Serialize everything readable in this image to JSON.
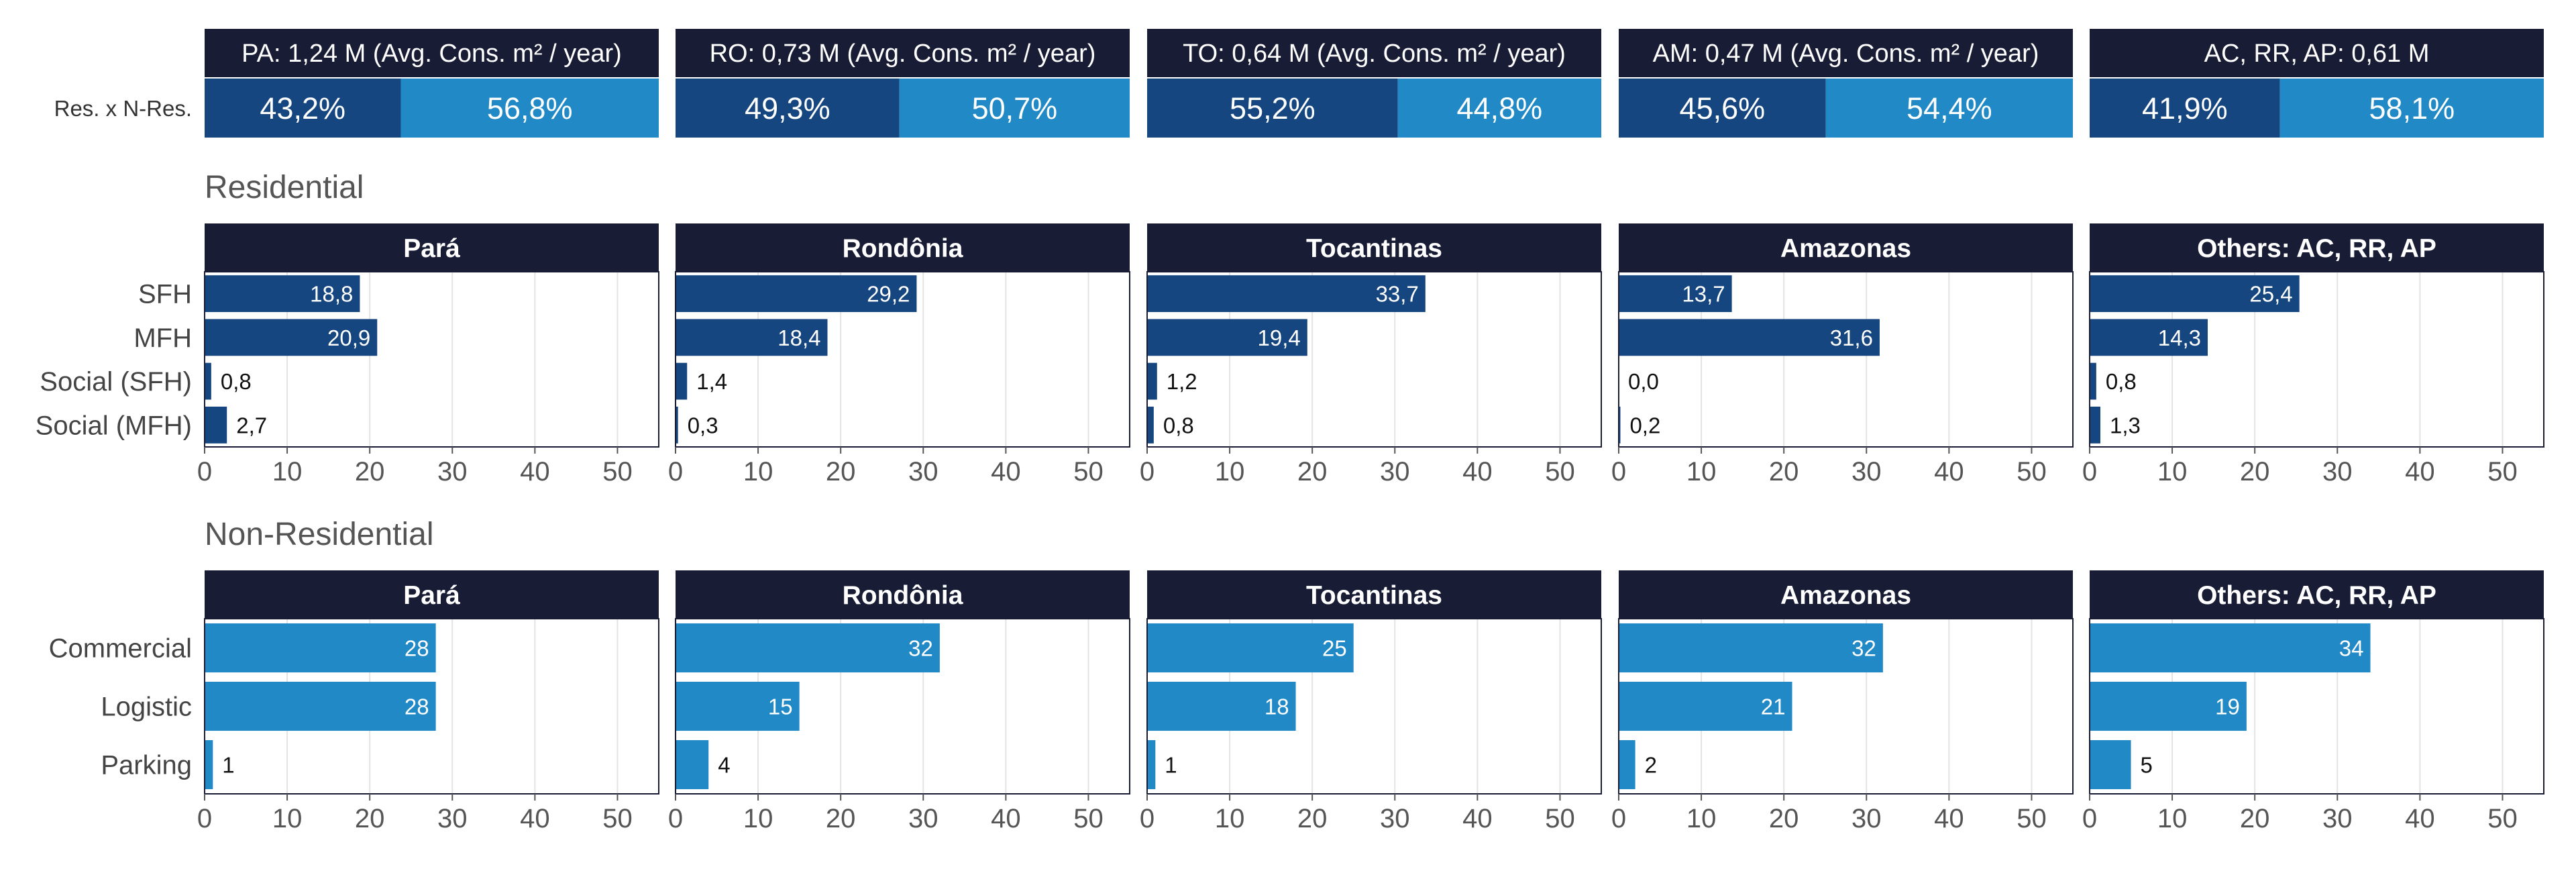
{
  "colors": {
    "header_bg": "#181c35",
    "residential": "#16467f",
    "non_residential": "#2189c6",
    "res_share": "#16467f",
    "nres_share": "#2189c6",
    "border": "#181c35",
    "grid": "#e3e3e3"
  },
  "share_row_label": "Res. x N-Res.",
  "section_labels": {
    "residential": "Residential",
    "non_residential": "Non-Residential"
  },
  "chart_data": [
    {
      "type": "bar",
      "orientation": "stacked-horizontal",
      "name": "share",
      "panels": [
        {
          "header": "PA: 1,24 M (Avg. Cons. m² / year)",
          "res": 43.2,
          "nres": 56.8,
          "res_label": "43,2%",
          "nres_label": "56,8%"
        },
        {
          "header": "RO: 0,73 M (Avg. Cons. m² / year)",
          "res": 49.3,
          "nres": 50.7,
          "res_label": "49,3%",
          "nres_label": "50,7%"
        },
        {
          "header": "TO: 0,64 M (Avg. Cons. m² / year)",
          "res": 55.2,
          "nres": 44.8,
          "res_label": "55,2%",
          "nres_label": "44,8%"
        },
        {
          "header": "AM: 0,47 M (Avg. Cons. m² / year)",
          "res": 45.6,
          "nres": 54.4,
          "res_label": "45,6%",
          "nres_label": "54,4%"
        },
        {
          "header": "AC, RR, AP: 0,61 M",
          "res": 41.9,
          "nres": 58.1,
          "res_label": "41,9%",
          "nres_label": "58,1%"
        }
      ]
    },
    {
      "type": "bar",
      "orientation": "horizontal",
      "name": "residential",
      "categories": [
        "SFH",
        "MFH",
        "Social (SFH)",
        "Social (MFH)"
      ],
      "xlim": [
        0,
        55
      ],
      "xticks": [
        0,
        10,
        20,
        30,
        40,
        50
      ],
      "panels": [
        {
          "header": "Pará",
          "values": [
            18.8,
            20.9,
            0.8,
            2.7
          ],
          "labels": [
            "18,8",
            "20,9",
            "0,8",
            "2,7"
          ]
        },
        {
          "header": "Rondônia",
          "values": [
            29.2,
            18.4,
            1.4,
            0.3
          ],
          "labels": [
            "29,2",
            "18,4",
            "1,4",
            "0,3"
          ]
        },
        {
          "header": "Tocantinas",
          "values": [
            33.7,
            19.4,
            1.2,
            0.8
          ],
          "labels": [
            "33,7",
            "19,4",
            "1,2",
            "0,8"
          ]
        },
        {
          "header": "Amazonas",
          "values": [
            13.7,
            31.6,
            0.0,
            0.2
          ],
          "labels": [
            "13,7",
            "31,6",
            "0,0",
            "0,2"
          ]
        },
        {
          "header": "Others: AC, RR, AP",
          "values": [
            25.4,
            14.3,
            0.8,
            1.3
          ],
          "labels": [
            "25,4",
            "14,3",
            "0,8",
            "1,3"
          ]
        }
      ]
    },
    {
      "type": "bar",
      "orientation": "horizontal",
      "name": "non_residential",
      "categories": [
        "Commercial",
        "Logistic",
        "Parking"
      ],
      "xlim": [
        0,
        55
      ],
      "xticks": [
        0,
        10,
        20,
        30,
        40,
        50
      ],
      "panels": [
        {
          "header": "Pará",
          "values": [
            28,
            28,
            1
          ],
          "labels": [
            "28",
            "28",
            "1"
          ]
        },
        {
          "header": "Rondônia",
          "values": [
            32,
            15,
            4
          ],
          "labels": [
            "32",
            "15",
            "4"
          ]
        },
        {
          "header": "Tocantinas",
          "values": [
            25,
            18,
            1
          ],
          "labels": [
            "25",
            "18",
            "1"
          ]
        },
        {
          "header": "Amazonas",
          "values": [
            32,
            21,
            2
          ],
          "labels": [
            "32",
            "21",
            "2"
          ]
        },
        {
          "header": "Others: AC, RR, AP",
          "values": [
            34,
            19,
            5
          ],
          "labels": [
            "34",
            "19",
            "5"
          ]
        }
      ]
    }
  ]
}
